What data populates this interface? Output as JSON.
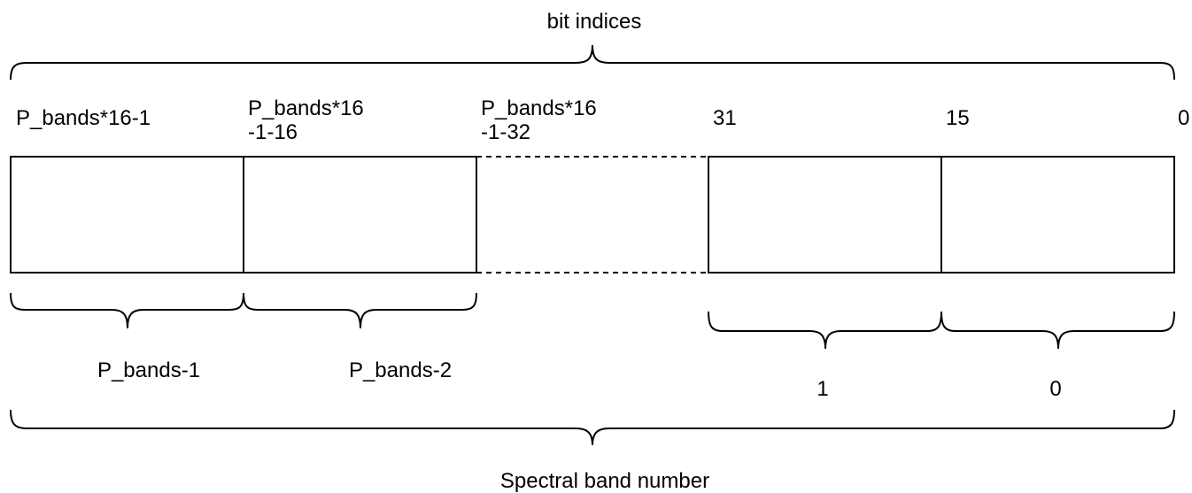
{
  "top_label": "bit indices",
  "bottom_label": "Spectral band number",
  "bit_index_labels": [
    [
      "P_bands*16-1"
    ],
    [
      "P_bands*16",
      "-1-16"
    ],
    [
      "P_bands*16",
      "-1-32"
    ],
    [
      "31"
    ],
    [
      "15"
    ],
    [
      "0"
    ]
  ],
  "band_labels": [
    "P_bands-1",
    "P_bands-2",
    "1",
    "0"
  ]
}
